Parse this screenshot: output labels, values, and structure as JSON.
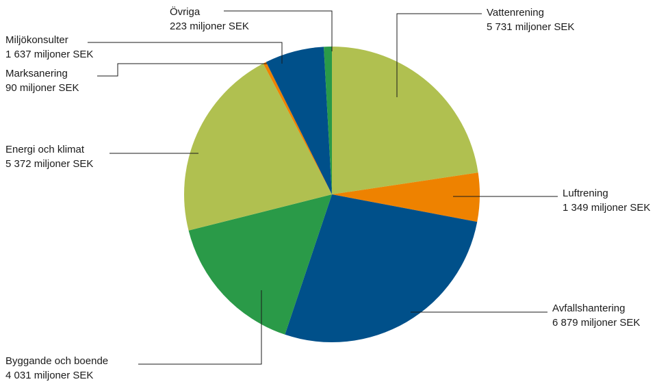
{
  "chart_data": {
    "type": "pie",
    "unit": "miljoner SEK",
    "slices": [
      {
        "name": "Vattenrening",
        "value": 5731,
        "value_label": "5 731 miljoner SEK",
        "color": "#b0c050"
      },
      {
        "name": "Luftrening",
        "value": 1349,
        "value_label": "1 349 miljoner SEK",
        "color": "#ee8200"
      },
      {
        "name": "Avfallshantering",
        "value": 6879,
        "value_label": "6 879 miljoner SEK",
        "color": "#00508a"
      },
      {
        "name": "Byggande och boende",
        "value": 4031,
        "value_label": "4 031 miljoner SEK",
        "color": "#2a9a48"
      },
      {
        "name": "Energi och klimat",
        "value": 5372,
        "value_label": "5 372 miljoner SEK",
        "color": "#b0c050"
      },
      {
        "name": "Marksanering",
        "value": 90,
        "value_label": "90 miljoner SEK",
        "color": "#ee8200"
      },
      {
        "name": "Miljökonsulter",
        "value": 1637,
        "value_label": "1 637 miljoner SEK",
        "color": "#00508a"
      },
      {
        "name": "Övriga",
        "value": 223,
        "value_label": "223 miljoner SEK",
        "color": "#2a9a48"
      }
    ]
  }
}
